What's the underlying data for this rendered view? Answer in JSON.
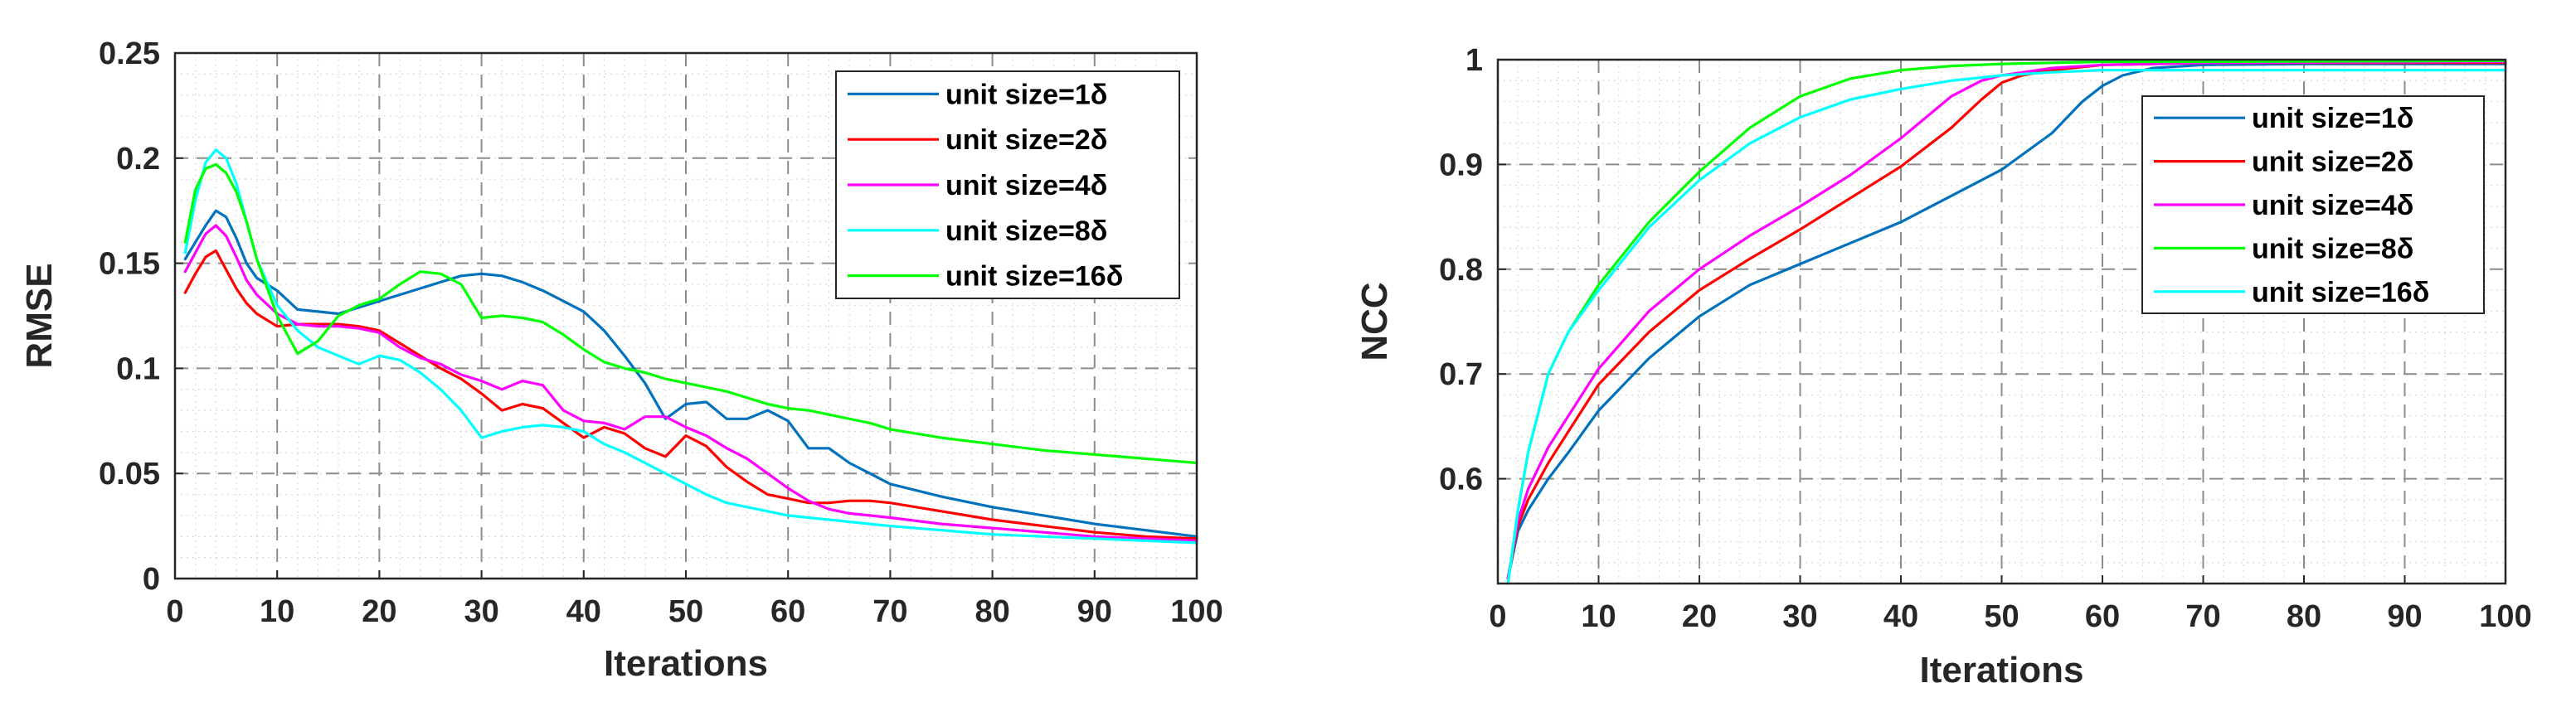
{
  "chart_data": [
    {
      "type": "line",
      "title": "",
      "xlabel": "Iterations",
      "ylabel": "RMSE",
      "xlim": [
        0,
        100
      ],
      "ylim": [
        0,
        0.25
      ],
      "xticks": [
        0,
        10,
        20,
        30,
        40,
        50,
        60,
        70,
        80,
        90,
        100
      ],
      "yticks": [
        0,
        0.05,
        0.1,
        0.15,
        0.2,
        0.25
      ],
      "ytick_labels": [
        "0",
        "0.05",
        "0.1",
        "0.15",
        "0.2",
        "0.25"
      ],
      "grid": true,
      "legend_position": "top-right",
      "series": [
        {
          "name": "unit size=1δ",
          "color": "#0072BD",
          "x": [
            1,
            2,
            3,
            4,
            5,
            6,
            7,
            8,
            10,
            12,
            14,
            16,
            18,
            20,
            22,
            24,
            26,
            28,
            30,
            32,
            34,
            36,
            38,
            40,
            42,
            44,
            46,
            48,
            50,
            52,
            54,
            56,
            58,
            60,
            62,
            64,
            66,
            68,
            70,
            75,
            80,
            85,
            90,
            95,
            100
          ],
          "y": [
            0.152,
            0.16,
            0.168,
            0.175,
            0.172,
            0.162,
            0.15,
            0.143,
            0.137,
            0.128,
            0.127,
            0.126,
            0.129,
            0.132,
            0.135,
            0.138,
            0.141,
            0.144,
            0.145,
            0.144,
            0.141,
            0.137,
            0.132,
            0.127,
            0.118,
            0.106,
            0.093,
            0.076,
            0.083,
            0.084,
            0.076,
            0.076,
            0.08,
            0.075,
            0.062,
            0.062,
            0.055,
            0.05,
            0.045,
            0.039,
            0.034,
            0.03,
            0.026,
            0.023,
            0.02
          ]
        },
        {
          "name": "unit size=2δ",
          "color": "#FF0000",
          "x": [
            1,
            2,
            3,
            4,
            5,
            6,
            7,
            8,
            10,
            12,
            14,
            16,
            18,
            20,
            22,
            24,
            26,
            28,
            30,
            32,
            34,
            36,
            38,
            40,
            42,
            44,
            46,
            48,
            50,
            52,
            54,
            56,
            58,
            60,
            62,
            64,
            66,
            68,
            70,
            75,
            80,
            85,
            90,
            95,
            100
          ],
          "y": [
            0.136,
            0.145,
            0.153,
            0.156,
            0.147,
            0.138,
            0.131,
            0.126,
            0.12,
            0.121,
            0.121,
            0.121,
            0.12,
            0.118,
            0.112,
            0.106,
            0.1,
            0.095,
            0.088,
            0.08,
            0.083,
            0.081,
            0.074,
            0.067,
            0.072,
            0.069,
            0.062,
            0.058,
            0.068,
            0.063,
            0.053,
            0.046,
            0.04,
            0.038,
            0.036,
            0.036,
            0.037,
            0.037,
            0.036,
            0.032,
            0.028,
            0.025,
            0.022,
            0.02,
            0.019
          ]
        },
        {
          "name": "unit size=4δ",
          "color": "#FF00FF",
          "x": [
            1,
            2,
            3,
            4,
            5,
            6,
            7,
            8,
            10,
            12,
            14,
            16,
            18,
            20,
            22,
            24,
            26,
            28,
            30,
            32,
            34,
            36,
            38,
            40,
            42,
            44,
            46,
            48,
            50,
            52,
            54,
            56,
            58,
            60,
            62,
            64,
            66,
            68,
            70,
            75,
            80,
            85,
            90,
            95,
            100
          ],
          "y": [
            0.146,
            0.155,
            0.164,
            0.168,
            0.163,
            0.153,
            0.142,
            0.135,
            0.126,
            0.121,
            0.12,
            0.12,
            0.119,
            0.117,
            0.11,
            0.105,
            0.102,
            0.097,
            0.094,
            0.09,
            0.094,
            0.092,
            0.08,
            0.075,
            0.074,
            0.071,
            0.077,
            0.077,
            0.072,
            0.068,
            0.062,
            0.057,
            0.05,
            0.043,
            0.037,
            0.033,
            0.031,
            0.03,
            0.029,
            0.026,
            0.024,
            0.022,
            0.02,
            0.019,
            0.018
          ]
        },
        {
          "name": "unit size=8δ",
          "color": "#00FFFF",
          "x": [
            1,
            2,
            3,
            4,
            5,
            6,
            7,
            8,
            10,
            12,
            14,
            16,
            18,
            20,
            22,
            24,
            26,
            28,
            30,
            32,
            34,
            36,
            38,
            40,
            42,
            44,
            46,
            48,
            50,
            52,
            54,
            56,
            58,
            60,
            62,
            64,
            66,
            68,
            70,
            75,
            80,
            85,
            90,
            95,
            100
          ],
          "y": [
            0.155,
            0.18,
            0.198,
            0.204,
            0.2,
            0.188,
            0.17,
            0.152,
            0.13,
            0.118,
            0.11,
            0.106,
            0.102,
            0.106,
            0.104,
            0.098,
            0.09,
            0.08,
            0.067,
            0.07,
            0.072,
            0.073,
            0.072,
            0.07,
            0.064,
            0.06,
            0.055,
            0.05,
            0.045,
            0.04,
            0.036,
            0.034,
            0.032,
            0.03,
            0.029,
            0.028,
            0.027,
            0.026,
            0.025,
            0.023,
            0.021,
            0.02,
            0.019,
            0.018,
            0.017
          ]
        },
        {
          "name": "unit size=16δ",
          "color": "#00FF00",
          "x": [
            1,
            2,
            3,
            4,
            5,
            6,
            7,
            8,
            10,
            12,
            14,
            16,
            18,
            20,
            22,
            24,
            26,
            28,
            30,
            32,
            34,
            36,
            38,
            40,
            42,
            44,
            46,
            48,
            50,
            52,
            54,
            56,
            58,
            60,
            62,
            64,
            66,
            68,
            70,
            75,
            80,
            85,
            90,
            95,
            100
          ],
          "y": [
            0.16,
            0.185,
            0.195,
            0.197,
            0.193,
            0.184,
            0.17,
            0.152,
            0.125,
            0.107,
            0.113,
            0.125,
            0.13,
            0.133,
            0.14,
            0.146,
            0.145,
            0.14,
            0.124,
            0.125,
            0.124,
            0.122,
            0.116,
            0.109,
            0.103,
            0.1,
            0.098,
            0.095,
            0.093,
            0.091,
            0.089,
            0.086,
            0.083,
            0.081,
            0.08,
            0.078,
            0.076,
            0.074,
            0.071,
            0.067,
            0.064,
            0.061,
            0.059,
            0.057,
            0.055
          ]
        }
      ]
    },
    {
      "type": "line",
      "title": "",
      "xlabel": "Iterations",
      "ylabel": "NCC",
      "xlim": [
        0,
        100
      ],
      "ylim": [
        0.5,
        1.0
      ],
      "xticks": [
        0,
        10,
        20,
        30,
        40,
        50,
        60,
        70,
        80,
        90,
        100
      ],
      "yticks": [
        0.6,
        0.7,
        0.8,
        0.9,
        1.0
      ],
      "ytick_labels": [
        "0.6",
        "0.7",
        "0.8",
        "0.9",
        "1"
      ],
      "grid": true,
      "legend_position": "top-right",
      "series": [
        {
          "name": "unit size=1δ",
          "color": "#0072BD",
          "x": [
            1,
            2,
            3,
            5,
            7,
            10,
            15,
            20,
            25,
            30,
            35,
            40,
            45,
            50,
            55,
            58,
            60,
            62,
            65,
            70,
            80,
            100
          ],
          "y": [
            0.505,
            0.55,
            0.57,
            0.6,
            0.625,
            0.665,
            0.715,
            0.755,
            0.785,
            0.805,
            0.825,
            0.845,
            0.87,
            0.895,
            0.93,
            0.96,
            0.975,
            0.985,
            0.992,
            0.995,
            0.996,
            0.996
          ]
        },
        {
          "name": "unit size=2δ",
          "color": "#FF0000",
          "x": [
            1,
            2,
            3,
            5,
            7,
            10,
            15,
            20,
            25,
            30,
            35,
            40,
            45,
            48,
            50,
            52,
            55,
            60,
            65,
            70,
            100
          ],
          "y": [
            0.505,
            0.555,
            0.58,
            0.615,
            0.645,
            0.69,
            0.74,
            0.78,
            0.81,
            0.838,
            0.868,
            0.898,
            0.935,
            0.962,
            0.978,
            0.985,
            0.99,
            0.995,
            0.996,
            0.997,
            0.997
          ]
        },
        {
          "name": "unit size=4δ",
          "color": "#FF00FF",
          "x": [
            1,
            2,
            3,
            5,
            7,
            10,
            15,
            20,
            25,
            30,
            35,
            40,
            45,
            48,
            50,
            55,
            60,
            70,
            100
          ],
          "y": [
            0.505,
            0.56,
            0.59,
            0.63,
            0.66,
            0.705,
            0.76,
            0.8,
            0.832,
            0.86,
            0.89,
            0.925,
            0.965,
            0.98,
            0.985,
            0.992,
            0.995,
            0.997,
            0.998
          ]
        },
        {
          "name": "unit size=8δ",
          "color": "#00FF00",
          "x": [
            1,
            2,
            3,
            5,
            7,
            10,
            15,
            20,
            25,
            30,
            35,
            40,
            45,
            50,
            55,
            60,
            70,
            100
          ],
          "y": [
            0.5,
            0.57,
            0.625,
            0.7,
            0.74,
            0.785,
            0.845,
            0.893,
            0.935,
            0.965,
            0.982,
            0.99,
            0.994,
            0.996,
            0.997,
            0.998,
            0.998,
            0.999
          ]
        },
        {
          "name": "unit size=16δ",
          "color": "#00FFFF",
          "x": [
            1,
            2,
            3,
            5,
            7,
            10,
            15,
            20,
            25,
            30,
            35,
            40,
            45,
            50,
            55,
            60,
            70,
            100
          ],
          "y": [
            0.5,
            0.57,
            0.625,
            0.7,
            0.74,
            0.78,
            0.84,
            0.885,
            0.92,
            0.945,
            0.962,
            0.972,
            0.98,
            0.985,
            0.988,
            0.99,
            0.99,
            0.99
          ]
        }
      ]
    }
  ]
}
